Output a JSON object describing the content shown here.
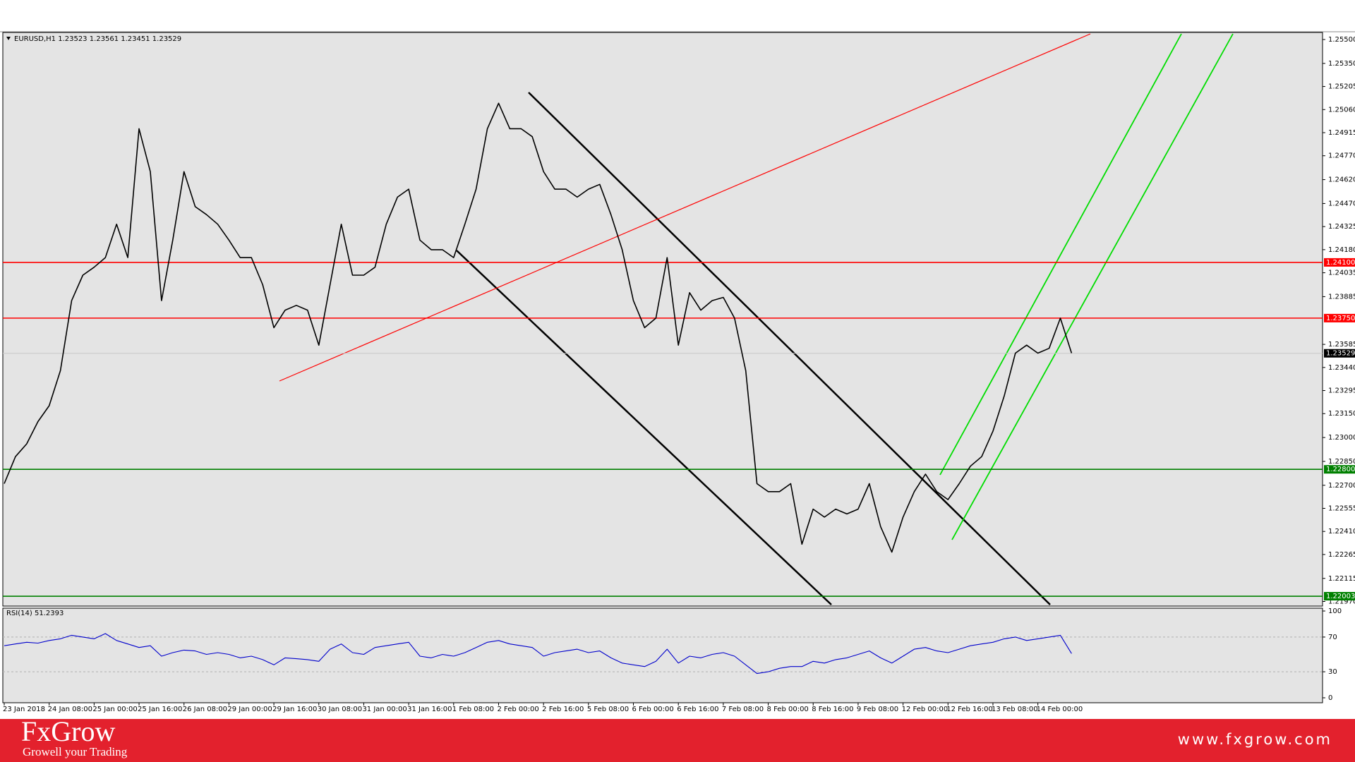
{
  "header": {
    "symbol_info": "EURUSD,H1  1.23523 1.23561 1.23451 1.23529"
  },
  "chart_data": [
    {
      "type": "line",
      "color": "#000000",
      "categories": [
        "23 Jan 2018",
        null,
        null,
        null,
        "24 Jan 08:00",
        null,
        null,
        null,
        "25 Jan 00:00",
        null,
        null,
        null,
        "25 Jan 16:00",
        null,
        null,
        null,
        "26 Jan 08:00",
        null,
        null,
        null,
        "29 Jan 00:00",
        null,
        null,
        null,
        "29 Jan 16:00",
        null,
        null,
        null,
        "30 Jan 08:00",
        null,
        null,
        null,
        "31 Jan 00:00",
        null,
        null,
        null,
        "31 Jan 16:00",
        null,
        null,
        null,
        "1 Feb 08:00",
        null,
        null,
        null,
        "2 Feb 00:00",
        null,
        null,
        null,
        "2 Feb 16:00",
        null,
        null,
        null,
        "5 Feb 08:00",
        null,
        null,
        null,
        "6 Feb 00:00",
        null,
        null,
        null,
        "6 Feb 16:00",
        null,
        null,
        null,
        "7 Feb 08:00",
        null,
        null,
        null,
        "8 Feb 00:00",
        null,
        null,
        null,
        "8 Feb 16:00",
        null,
        null,
        null,
        "9 Feb 08:00",
        null,
        null,
        null,
        "12 Feb 00:00",
        null,
        null,
        null,
        "12 Feb 16:00",
        null,
        null,
        null,
        "13 Feb 08:00",
        null,
        null,
        null,
        "14 Feb 00:00",
        null,
        null,
        null
      ],
      "values": [
        1.2271,
        1.2288,
        1.2296,
        1.231,
        1.232,
        1.2342,
        1.2386,
        1.2402,
        1.2407,
        1.2413,
        1.2434,
        1.2413,
        1.2494,
        1.2467,
        1.2386,
        1.2424,
        1.2467,
        1.2445,
        1.244,
        1.2434,
        1.2424,
        1.2413,
        1.2413,
        1.2396,
        1.2369,
        1.238,
        1.2383,
        1.238,
        1.2358,
        1.2396,
        1.2434,
        1.2402,
        1.2402,
        1.2407,
        1.2434,
        1.2451,
        1.2456,
        1.2424,
        1.2418,
        1.2418,
        1.2413,
        1.2434,
        1.2456,
        1.2494,
        1.251,
        1.2494,
        1.2494,
        1.2489,
        1.2467,
        1.2456,
        1.2456,
        1.2451,
        1.2456,
        1.2459,
        1.244,
        1.2418,
        1.2386,
        1.2369,
        1.2375,
        1.2413,
        1.2358,
        1.2391,
        1.238,
        1.2386,
        1.2388,
        1.2375,
        1.2342,
        1.2271,
        1.2266,
        1.2266,
        1.2271,
        1.2233,
        1.2255,
        1.225,
        1.2255,
        1.2252,
        1.2255,
        1.2271,
        1.2244,
        1.2228,
        1.225,
        1.2266,
        1.2277,
        1.2266,
        1.2261,
        1.2271,
        1.2282,
        1.2288,
        1.2304,
        1.2326,
        1.2353,
        1.2358,
        1.2353,
        1.2356,
        1.2375,
        1.2353
      ],
      "ylim": [
        1.2195,
        1.2554
      ],
      "yticks": [
        {
          "value": 1.255,
          "label": "1.25500"
        },
        {
          "value": 1.2535,
          "label": "1.25350"
        },
        1.25205,
        {
          "value": 1.2506,
          "label": "1.25060"
        },
        1.24915,
        {
          "value": 1.2477,
          "label": "1.24770"
        },
        {
          "value": 1.2462,
          "label": "1.24620"
        },
        {
          "value": 1.2447,
          "label": "1.24470"
        },
        1.24325,
        {
          "value": 1.2418,
          "label": "1.24180"
        },
        1.24035,
        1.23885,
        1.23585,
        {
          "value": 1.2344,
          "label": "1.23440"
        },
        1.23295,
        {
          "value": 1.2315,
          "label": "1.23150"
        },
        {
          "value": 1.23,
          "label": "1.23000"
        },
        {
          "value": 1.2285,
          "label": "1.22850"
        },
        {
          "value": 1.227,
          "label": "1.22700"
        },
        1.22555,
        {
          "value": 1.2241,
          "label": "1.22410"
        },
        1.22265,
        1.22115,
        {
          "value": 1.2197,
          "label": "1.21970"
        }
      ],
      "levels": [
        {
          "value": 1.241,
          "label": "1.24100",
          "color": "#ff0000"
        },
        {
          "value": 1.2375,
          "label": "1.23750",
          "color": "#ff0000"
        },
        {
          "value": 1.23529,
          "color": "#000000",
          "line": "#c8c8c8"
        },
        {
          "value": 1.228,
          "label": "1.22800",
          "color": "#008000"
        },
        {
          "value": 1.22003,
          "color": "#008000"
        }
      ]
    },
    {
      "type": "line",
      "title": "RSI(14) 51.2393",
      "color": "#0000cc",
      "values": [
        60,
        62,
        64,
        63,
        66,
        68,
        72,
        70,
        68,
        74,
        66,
        62,
        58,
        60,
        48,
        52,
        55,
        54,
        50,
        52,
        50,
        46,
        48,
        44,
        38,
        46,
        45,
        44,
        42,
        56,
        62,
        52,
        50,
        58,
        60,
        62,
        64,
        48,
        46,
        50,
        48,
        52,
        58,
        64,
        66,
        62,
        60,
        58,
        48,
        52,
        54,
        56,
        52,
        54,
        46,
        40,
        38,
        36,
        42,
        56,
        40,
        48,
        46,
        50,
        52,
        48,
        38,
        28,
        30,
        34,
        36,
        36,
        42,
        40,
        44,
        46,
        50,
        54,
        46,
        40,
        48,
        56,
        58,
        54,
        52,
        56,
        60,
        62,
        64,
        68,
        70,
        66,
        68,
        70,
        72,
        51
      ],
      "ylim": [
        0,
        100
      ],
      "yticks": [
        0,
        30,
        70,
        100
      ],
      "grid": true
    }
  ],
  "footer": {
    "brand": "FxGrow",
    "tagline": "Growell your Trading",
    "url": "www.fxgrow.com"
  }
}
